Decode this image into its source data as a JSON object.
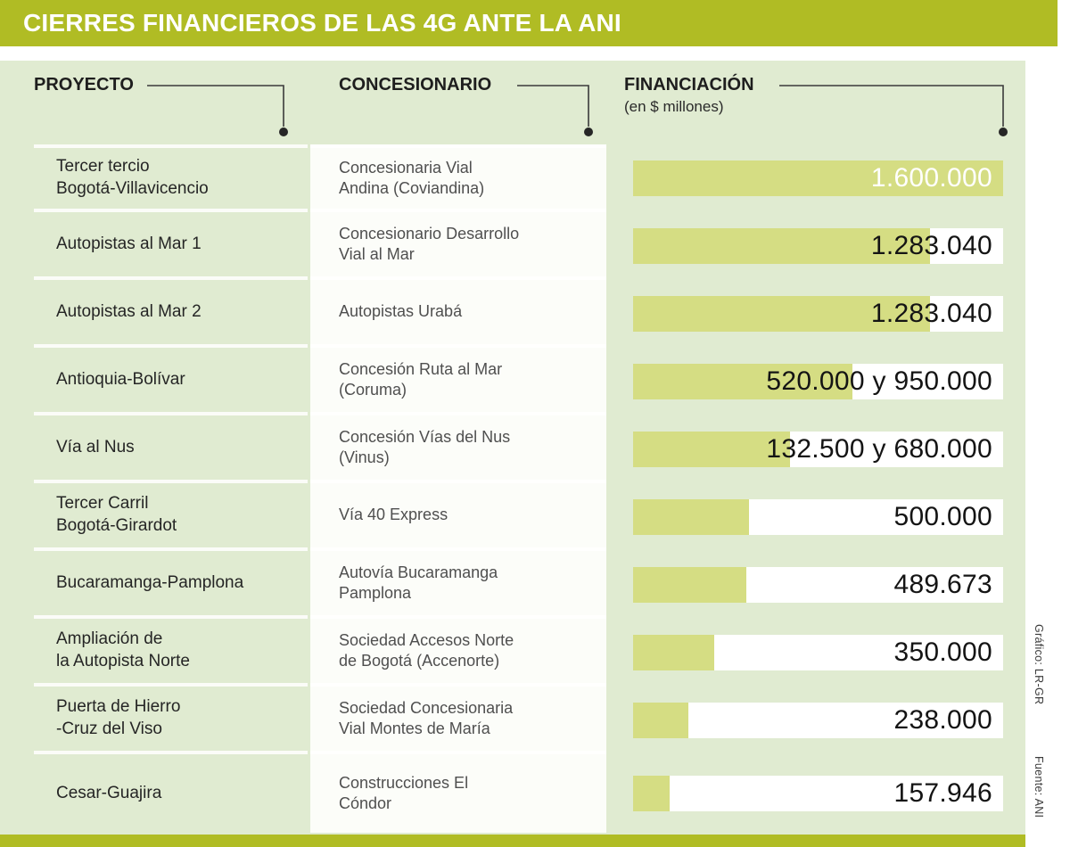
{
  "title_bar": {
    "title": "CIERRES FINANCIEROS DE LAS 4G ANTE LA ANI"
  },
  "table_headers": {
    "project": "PROYECTO",
    "concessionaire": "CONCESIONARIO",
    "financing": "FINANCIACIÓN",
    "financing_unit": "(en $ millones)"
  },
  "credits": {
    "graphic": "Gráfico: LR-GR",
    "source": "Fuente: ANI"
  },
  "colors": {
    "header_bar": "#b0bc24",
    "panel_background": "#e0ebd1",
    "bar_fill": "#d5dd83",
    "bar_track": "#ffffff"
  },
  "chart_data": {
    "type": "bar",
    "orientation": "horizontal",
    "title": "CIERRES FINANCIEROS DE LAS 4G ANTE LA ANI",
    "unit": "$ millones",
    "x_max": 1600000,
    "columns": [
      "PROYECTO",
      "CONCESIONARIO",
      "FINANCIACIÓN (en $ millones)"
    ],
    "rows": [
      {
        "project": "Tercer tercio\nBogotá-Villavicencio",
        "concessionaire": "Concesionaria Vial\nAndina (Coviandina)",
        "financing_label": "1.600.000",
        "values": [
          1600000
        ],
        "bar_value": 1600000,
        "label_on_bar": true
      },
      {
        "project": "Autopistas al Mar 1",
        "concessionaire": "Concesionario Desarrollo\nVial al Mar",
        "financing_label": "1.283.040",
        "values": [
          1283040
        ],
        "bar_value": 1283040,
        "label_on_bar": false
      },
      {
        "project": "Autopistas al Mar 2",
        "concessionaire": "Autopistas Urabá",
        "financing_label": "1.283.040",
        "values": [
          1283040
        ],
        "bar_value": 1283040,
        "label_on_bar": false
      },
      {
        "project": "Antioquia-Bolívar",
        "concessionaire": "Concesión Ruta al Mar\n(Coruma)",
        "financing_label": "520.000 y 950.000",
        "values": [
          520000,
          950000
        ],
        "bar_value": 950000,
        "label_on_bar": false
      },
      {
        "project": "Vía al Nus",
        "concessionaire": "Concesión Vías del Nus\n(Vinus)",
        "financing_label": "132.500 y 680.000",
        "values": [
          132500,
          680000
        ],
        "bar_value": 680000,
        "label_on_bar": false
      },
      {
        "project": "Tercer Carril\nBogotá-Girardot",
        "concessionaire": "Vía 40 Express",
        "financing_label": "500.000",
        "values": [
          500000
        ],
        "bar_value": 500000,
        "label_on_bar": false
      },
      {
        "project": "Bucaramanga-Pamplona",
        "concessionaire": "Autovía Bucaramanga\nPamplona",
        "financing_label": "489.673",
        "values": [
          489673
        ],
        "bar_value": 489673,
        "label_on_bar": false
      },
      {
        "project": "Ampliación de\nla Autopista Norte",
        "concessionaire": "Sociedad Accesos Norte\nde Bogotá (Accenorte)",
        "financing_label": "350.000",
        "values": [
          350000
        ],
        "bar_value": 350000,
        "label_on_bar": false
      },
      {
        "project": "Puerta de Hierro\n-Cruz del Viso",
        "concessionaire": "Sociedad Concesionaria\nVial Montes de María",
        "financing_label": "238.000",
        "values": [
          238000
        ],
        "bar_value": 238000,
        "label_on_bar": false
      },
      {
        "project": "Cesar-Guajira",
        "concessionaire": "Construcciones El\nCóndor",
        "financing_label": "157.946",
        "values": [
          157946
        ],
        "bar_value": 157946,
        "label_on_bar": false
      }
    ]
  }
}
